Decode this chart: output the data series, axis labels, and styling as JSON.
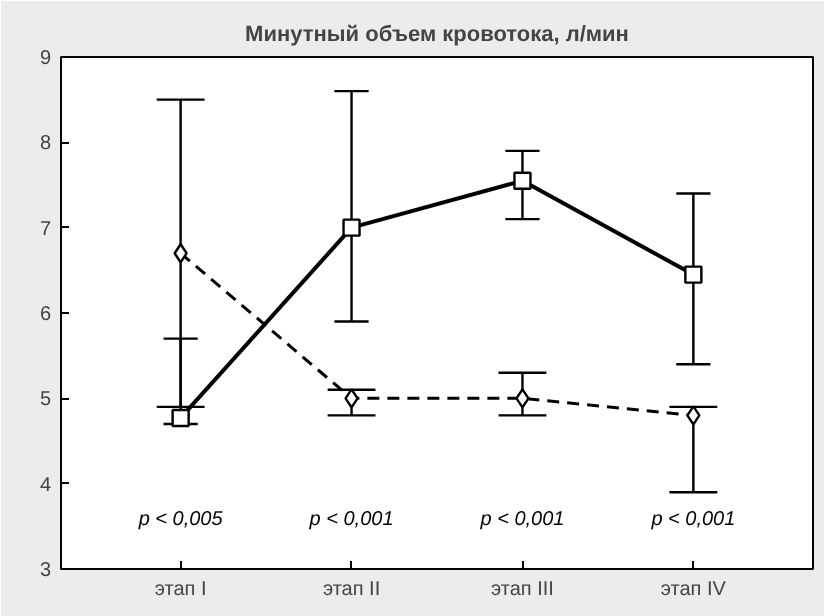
{
  "chart_data": {
    "type": "line",
    "title": "Минутный объем кровотока, л/мин",
    "categories": [
      "этап I",
      "этап II",
      "этап III",
      "этап IV"
    ],
    "series": [
      {
        "color": "#000000",
        "marker": "square",
        "line_style": "solid",
        "values": [
          4.77,
          7.0,
          7.55,
          6.45
        ],
        "errors": [
          [
            4.7,
            5.7
          ],
          [
            5.9,
            8.6
          ],
          [
            7.1,
            7.9
          ],
          [
            5.4,
            7.4
          ]
        ]
      },
      {
        "color": "#000000",
        "marker": "diamond",
        "line_style": "dashed",
        "values": [
          6.7,
          5.0,
          5.0,
          4.8
        ],
        "errors": [
          [
            4.9,
            8.5
          ],
          [
            4.8,
            5.1
          ],
          [
            4.8,
            5.3
          ],
          [
            3.9,
            4.9
          ]
        ]
      }
    ],
    "ylim": [
      3,
      9
    ],
    "yticks": [
      3,
      4,
      5,
      6,
      7,
      8,
      9
    ],
    "grid": false,
    "annotations": [
      "p < 0,005",
      "p < 0,001",
      "p < 0,001",
      "p < 0,001"
    ]
  }
}
